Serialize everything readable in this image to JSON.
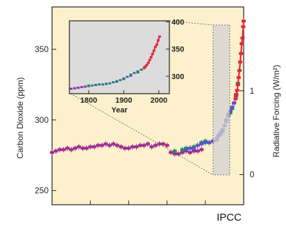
{
  "chart_data": [
    {
      "type": "scatter",
      "title": "",
      "ylabel": "Carbon Dioxide (ppm)",
      "y2label": "Radiative Forcing (W/m²)",
      "xlim": [
        1000,
        2000
      ],
      "ylim": [
        240,
        380
      ],
      "y2lim": [
        -0.36,
        2.0
      ],
      "y_ticks": [
        250,
        300,
        350
      ],
      "y2_ticks": [
        0,
        1
      ],
      "x_ticks": [
        1000,
        1200,
        1400,
        1600,
        1800,
        2000
      ],
      "x_ticklabels_shown": false,
      "background": "#fdf1cd",
      "series": [
        {
          "color": "#9b2d93",
          "x": [
            1000,
            1020,
            1040,
            1060,
            1080,
            1100,
            1120,
            1140,
            1160,
            1180,
            1200,
            1220,
            1240,
            1260,
            1280,
            1300,
            1320,
            1340,
            1360,
            1380,
            1400,
            1420,
            1440,
            1460,
            1480,
            1500,
            1520,
            1540,
            1560,
            1580,
            1600,
            1620,
            1640,
            1660,
            1680,
            1700,
            1720,
            1740,
            1760,
            1780
          ],
          "y": [
            277,
            278,
            279,
            279,
            280,
            279,
            280,
            281,
            280,
            280,
            281,
            281,
            282,
            282,
            283,
            282,
            283,
            282,
            281,
            280,
            280,
            281,
            281,
            282,
            282,
            283,
            281,
            282,
            283,
            283,
            282,
            277,
            276,
            276,
            277,
            278,
            277,
            278,
            278,
            279
          ]
        },
        {
          "color": "#1a8f5a",
          "x": [
            1640,
            1680,
            1700,
            1720,
            1740,
            1760,
            1780,
            1800,
            1820,
            1840,
            1860,
            1870,
            1880,
            1890,
            1900,
            1910,
            1920,
            1930,
            1940,
            1950,
            1960,
            1970
          ],
          "y": [
            278,
            279,
            280,
            280,
            281,
            282,
            284,
            285,
            284,
            285,
            287,
            289,
            291,
            292,
            296,
            300,
            304,
            305,
            308,
            312,
            318,
            326
          ]
        },
        {
          "color": "#5b50c8",
          "x": [
            1700,
            1720,
            1740,
            1760,
            1780,
            1800,
            1820,
            1840,
            1860,
            1870,
            1880,
            1890,
            1900,
            1910,
            1920,
            1930,
            1940,
            1950,
            1960,
            1970
          ],
          "y": [
            279,
            280,
            280,
            282,
            283,
            284,
            284,
            285,
            286,
            289,
            290,
            293,
            296,
            299,
            303,
            306,
            309,
            312,
            317,
            325
          ]
        },
        {
          "color": "#e2283a",
          "x": [
            1958,
            1962,
            1966,
            1970,
            1974,
            1978,
            1982,
            1986,
            1990,
            1994,
            1998,
            2000
          ],
          "y": [
            315,
            318,
            321,
            325,
            330,
            335,
            341,
            347,
            354,
            358,
            366,
            370
          ]
        }
      ]
    },
    {
      "type": "scatter",
      "title": "",
      "xlabel": "Year",
      "ylabel": "",
      "xlim": [
        1745,
        2030
      ],
      "ylim": [
        268,
        402
      ],
      "x_ticks": [
        1800,
        1900,
        2000
      ],
      "y_ticks": [
        300,
        350,
        400
      ],
      "background": "#dcdcdc",
      "series": [
        {
          "color": "#9b2d93",
          "x": [
            1750,
            1760,
            1770,
            1780,
            1790,
            1800
          ],
          "y": [
            277,
            278,
            279,
            280,
            281,
            282
          ]
        },
        {
          "color": "#1a8f5a",
          "x": [
            1800,
            1810,
            1820,
            1830,
            1840,
            1850,
            1860,
            1870,
            1880,
            1890,
            1900,
            1910,
            1920,
            1930,
            1940,
            1950,
            1960
          ],
          "y": [
            283,
            283,
            284,
            285,
            285,
            286,
            287,
            289,
            291,
            293,
            296,
            299,
            303,
            306,
            309,
            312,
            317
          ]
        },
        {
          "color": "#5b50c8",
          "x": [
            1760,
            1790,
            1820,
            1850,
            1880,
            1900,
            1920,
            1940
          ],
          "y": [
            278,
            281,
            284,
            286,
            290,
            295,
            301,
            307
          ]
        },
        {
          "color": "#e2283a",
          "x": [
            1958,
            1962,
            1966,
            1970,
            1974,
            1978,
            1982,
            1986,
            1990,
            1994,
            1998,
            2002
          ],
          "y": [
            315,
            318,
            321,
            325,
            330,
            335,
            341,
            347,
            354,
            358,
            366,
            373
          ]
        }
      ]
    }
  ],
  "source_label": "IPCC"
}
